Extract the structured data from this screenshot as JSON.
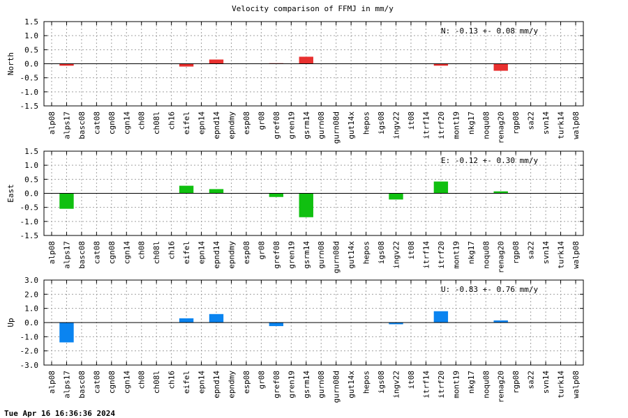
{
  "title": "Velocity comparison of FFMJ in mm/y",
  "timestamp": "Tue Apr 16 16:36:36 2024",
  "categories": [
    "alp08",
    "alps17",
    "basc08",
    "cat08",
    "cgn08",
    "cgn14",
    "ch08",
    "ch08l",
    "ch16",
    "eifel",
    "epn14",
    "epnd14",
    "epndmy",
    "esp08",
    "gr08",
    "gref08",
    "gren19",
    "gsrm14",
    "gurn08",
    "gurn08d",
    "gut14x",
    "hepos",
    "igs08",
    "ingv22",
    "it08",
    "itrf14",
    "itrf20",
    "mont19",
    "nkg17",
    "noqu08",
    "renag20",
    "rgp08",
    "sa22",
    "svn14",
    "turk14",
    "walp08"
  ],
  "chart_data": [
    {
      "type": "bar",
      "ylabel": "North",
      "ylim": [
        -1.5,
        1.5
      ],
      "yticks": [
        "-1.5",
        "-1.0",
        "-0.5",
        "0.0",
        "0.5",
        "1.0",
        "1.5"
      ],
      "annotation": "N:  -0.13 +-  0.08 mm/y",
      "color": "#e8302f",
      "grid": true,
      "values": {
        "alps17": -0.07,
        "eifel": -0.1,
        "epnd14": 0.15,
        "gref08": 0.02,
        "gsrm14": 0.25,
        "itrf20": -0.07,
        "renag20": -0.25
      }
    },
    {
      "type": "bar",
      "ylabel": "East",
      "ylim": [
        -1.5,
        1.5
      ],
      "yticks": [
        "-1.5",
        "-1.0",
        "-0.5",
        "0.0",
        "0.5",
        "1.0",
        "1.5"
      ],
      "annotation": "E:  -0.12 +-  0.30 mm/y",
      "color": "#10c010",
      "grid": true,
      "values": {
        "alps17": -0.55,
        "eifel": 0.27,
        "epnd14": 0.15,
        "gref08": -0.13,
        "gsrm14": -0.85,
        "ingv22": -0.22,
        "itrf20": 0.42,
        "renag20": 0.07
      }
    },
    {
      "type": "bar",
      "ylabel": "Up",
      "ylim": [
        -3.0,
        3.0
      ],
      "yticks": [
        "-3.0",
        "-2.0",
        "-1.0",
        "0.0",
        "1.0",
        "2.0",
        "3.0"
      ],
      "annotation": "U:  -0.83 +-  0.76 mm/y",
      "color": "#0a84f0",
      "grid": true,
      "values": {
        "alps17": -1.4,
        "eifel": 0.3,
        "epnd14": 0.6,
        "gref08": -0.25,
        "ingv22": -0.12,
        "itrf20": 0.8,
        "renag20": 0.15
      }
    }
  ]
}
